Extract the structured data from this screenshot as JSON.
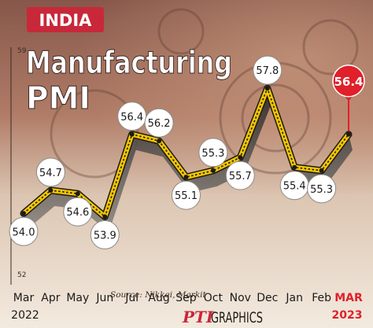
{
  "badge": "INDIA",
  "title_line1": "Manufacturing",
  "title_line2": "PMI",
  "source": "Source: Nikkei, Markit",
  "credit_logo": "PTI",
  "credit_text": "GRAPHICS",
  "colors": {
    "badge": "#c8283a",
    "line": "#f2c500",
    "highlight": "#e0202a",
    "shadow": "#3a3533",
    "background_top": "#8a5a4c",
    "background_bottom": "#f3eadf"
  },
  "chart_data": {
    "type": "line",
    "title": "Manufacturing PMI",
    "categories": [
      "Mar",
      "Apr",
      "May",
      "Jun",
      "Jul",
      "Aug",
      "Sep",
      "Oct",
      "Nov",
      "Dec",
      "Jan",
      "Feb",
      "MAR"
    ],
    "year_labels": [
      "2022",
      "",
      "",
      "",
      "",
      "",
      "",
      "",
      "",
      "",
      "",
      "",
      "2023"
    ],
    "values": [
      54.0,
      54.7,
      54.6,
      53.9,
      56.4,
      56.2,
      55.1,
      55.3,
      55.7,
      57.8,
      55.4,
      55.3,
      56.4
    ],
    "value_labels": [
      "54.0",
      "54.7",
      "54.6",
      "53.9",
      "56.4",
      "56.2",
      "55.1",
      "55.3",
      "55.7",
      "57.8",
      "55.4",
      "55.3",
      "56.4"
    ],
    "highlight_index": 12,
    "y_ticks": [
      "59",
      "52"
    ],
    "ylim": [
      52,
      59
    ],
    "grid": false
  }
}
